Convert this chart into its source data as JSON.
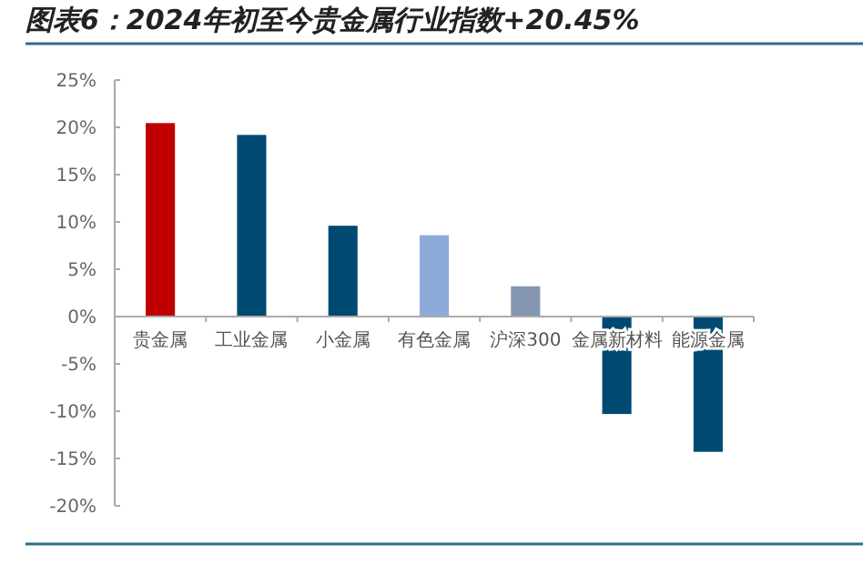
{
  "chart_data": {
    "type": "bar",
    "title": "图表6：2024年初至今贵金属行业指数+20.45%",
    "categories": [
      "贵金属",
      "工业金属",
      "小金属",
      "有色金属",
      "沪深300",
      "金属新材料",
      "能源金属"
    ],
    "values": [
      20.45,
      19.2,
      9.6,
      8.6,
      3.2,
      -10.3,
      -14.3
    ],
    "colors": [
      "#c00000",
      "#004a72",
      "#004a72",
      "#8eaadb",
      "#8496b0",
      "#004a72",
      "#004a72"
    ],
    "ylim": [
      -20,
      25
    ],
    "yticks": [
      {
        "value": -20,
        "label": "-20%"
      },
      {
        "value": -15,
        "label": "-15%"
      },
      {
        "value": -10,
        "label": "-10%"
      },
      {
        "value": -5,
        "label": "-5%"
      },
      {
        "value": 0,
        "label": "0%"
      },
      {
        "value": 5,
        "label": "5%"
      },
      {
        "value": 10,
        "label": "10%"
      },
      {
        "value": 15,
        "label": "15%"
      },
      {
        "value": 20,
        "label": "20%"
      },
      {
        "value": 25,
        "label": "25%"
      }
    ],
    "grid": false
  }
}
